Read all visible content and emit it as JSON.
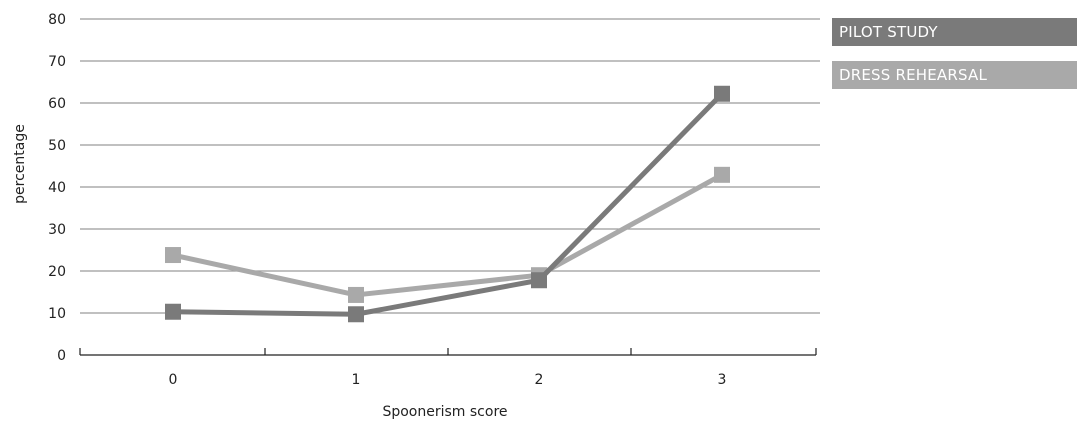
{
  "chart_data": {
    "type": "line",
    "xlabel": "Spoonerism score",
    "ylabel": "percentage",
    "categories": [
      "0",
      "1",
      "2",
      "3"
    ],
    "ylim": [
      0,
      80
    ],
    "yticks": [
      "0",
      "10",
      "20",
      "30",
      "40",
      "50",
      "60",
      "70",
      "80"
    ],
    "grid": true,
    "legend_position": "top-right",
    "series": [
      {
        "name": "PILOT STUDY",
        "color": "#7a7a7a",
        "values": [
          10.3,
          9.7,
          17.8,
          62.2
        ]
      },
      {
        "name": "DRESS REHEARSAL",
        "color": "#a9a9a9",
        "values": [
          23.8,
          14.3,
          19.0,
          42.9
        ]
      }
    ]
  }
}
